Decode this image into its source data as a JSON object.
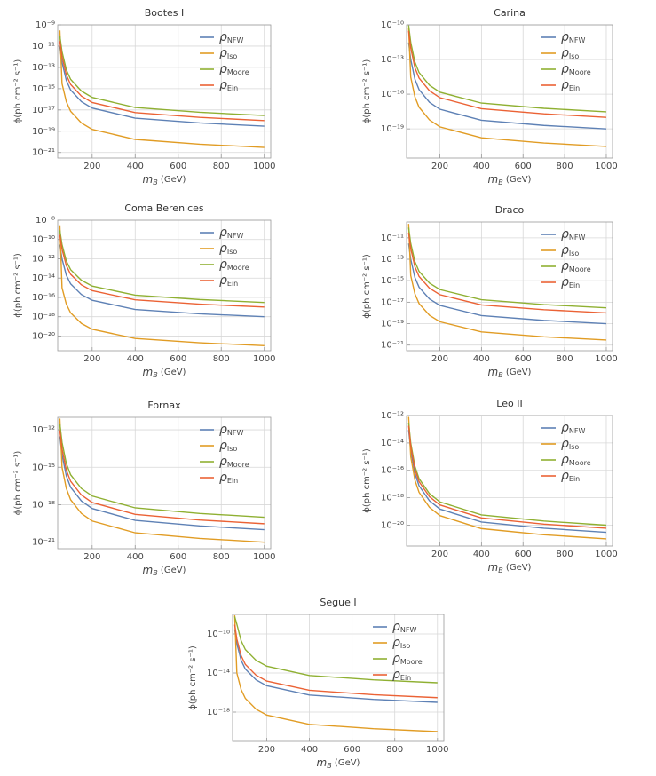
{
  "chart_data": [
    {
      "type": "line",
      "title": "Bootes I",
      "xlabel": "mB (GeV)",
      "ylabel": "ϕ(ph cm⁻² s⁻¹)",
      "yscale": "log",
      "grid": true,
      "legend": "upper right",
      "x": [
        50,
        60,
        80,
        100,
        150,
        200,
        400,
        700,
        1000
      ],
      "xlim": [
        40,
        1030
      ],
      "xticks": [
        200,
        400,
        600,
        800,
        1000
      ],
      "ylim": [
        3e-22,
        1e-09
      ],
      "yticks": [
        {
          "value": 1e-09,
          "label": "10⁻⁹"
        },
        {
          "value": 1e-11,
          "label": "10⁻¹¹"
        },
        {
          "value": 1e-13,
          "label": "10⁻¹³"
        },
        {
          "value": 1e-15,
          "label": "10⁻¹⁵"
        },
        {
          "value": 1e-17,
          "label": "10⁻¹⁷"
        },
        {
          "value": 1e-19,
          "label": "10⁻¹⁹"
        },
        {
          "value": 1e-21,
          "label": "10⁻²¹"
        }
      ],
      "series": [
        {
          "name": "ρNFW",
          "color": "#5e81b5",
          "values": [
            9e-12,
            3e-13,
            6e-15,
            7.5e-16,
            6e-17,
            1.5e-17,
            1.7e-18,
            6e-19,
            3e-19
          ]
        },
        {
          "name": "ρIso",
          "color": "#e19c24",
          "values": [
            3e-10,
            3e-15,
            6e-17,
            7.5e-18,
            6e-19,
            1.5e-19,
            1.7e-20,
            6e-21,
            3e-21
          ]
        },
        {
          "name": "ρMoore",
          "color": "#8fb032",
          "values": [
            9e-11,
            3e-12,
            6e-14,
            7.5e-15,
            6e-16,
            1.5e-16,
            1.7e-17,
            6e-18,
            3e-18
          ]
        },
        {
          "name": "ρEin",
          "color": "#eb6235",
          "values": [
            3e-11,
            1e-12,
            2e-14,
            2.5e-15,
            2e-16,
            5e-17,
            5.6e-18,
            2e-18,
            1e-18
          ]
        }
      ]
    },
    {
      "type": "line",
      "title": "Carina",
      "xlabel": "mB (GeV)",
      "ylabel": "ϕ(ph cm⁻² s⁻¹)",
      "yscale": "log",
      "grid": true,
      "legend": "upper right",
      "x": [
        50,
        60,
        80,
        100,
        150,
        200,
        400,
        700,
        1000
      ],
      "xlim": [
        40,
        1030
      ],
      "xticks": [
        200,
        400,
        600,
        800,
        1000
      ],
      "ylim": [
        3e-22,
        1e-10
      ],
      "yticks": [
        {
          "value": 1e-10,
          "label": "10⁻¹⁰"
        },
        {
          "value": 1e-13,
          "label": "10⁻¹³"
        },
        {
          "value": 1e-16,
          "label": "10⁻¹⁶"
        },
        {
          "value": 1e-19,
          "label": "10⁻¹⁹"
        }
      ],
      "series": [
        {
          "name": "ρNFW",
          "color": "#5e81b5",
          "values": [
            3e-12,
            1e-13,
            2e-15,
            2.5e-16,
            2e-17,
            5e-18,
            5.6e-19,
            2e-19,
            1e-19
          ]
        },
        {
          "name": "ρIso",
          "color": "#e19c24",
          "values": [
            5e-11,
            3e-15,
            6e-17,
            7.5e-18,
            6e-19,
            1.5e-19,
            1.7e-20,
            6e-21,
            3e-21
          ]
        },
        {
          "name": "ρMoore",
          "color": "#8fb032",
          "values": [
            9e-11,
            3e-12,
            6e-14,
            7.5e-15,
            6e-16,
            1.5e-16,
            1.7e-17,
            6e-18,
            3e-18
          ]
        },
        {
          "name": "ρEin",
          "color": "#eb6235",
          "values": [
            3e-11,
            1e-12,
            2e-14,
            2.5e-15,
            2e-16,
            5e-17,
            5.6e-18,
            2e-18,
            1e-18
          ]
        }
      ]
    },
    {
      "type": "line",
      "title": "Coma Berenices",
      "xlabel": "mB (GeV)",
      "ylabel": "ϕ(ph cm⁻² s⁻¹)",
      "yscale": "log",
      "grid": true,
      "legend": "upper right",
      "x": [
        50,
        60,
        80,
        100,
        150,
        200,
        400,
        700,
        1000
      ],
      "xlim": [
        40,
        1030
      ],
      "xticks": [
        200,
        400,
        600,
        800,
        1000
      ],
      "ylim": [
        3e-22,
        1e-08
      ],
      "yticks": [
        {
          "value": 1e-08,
          "label": "10⁻⁸"
        },
        {
          "value": 1e-10,
          "label": "10⁻¹⁰"
        },
        {
          "value": 1e-12,
          "label": "10⁻¹²"
        },
        {
          "value": 1e-14,
          "label": "10⁻¹⁴"
        },
        {
          "value": 1e-16,
          "label": "10⁻¹⁶"
        },
        {
          "value": 1e-18,
          "label": "10⁻¹⁸"
        },
        {
          "value": 1e-20,
          "label": "10⁻²⁰"
        }
      ],
      "series": [
        {
          "name": "ρNFW",
          "color": "#5e81b5",
          "values": [
            3e-11,
            1e-12,
            2e-14,
            2.5e-15,
            2e-16,
            5e-17,
            5.6e-18,
            2e-18,
            1e-18
          ]
        },
        {
          "name": "ρIso",
          "color": "#e19c24",
          "values": [
            3e-09,
            1e-15,
            2e-17,
            2.5e-18,
            2e-19,
            5e-20,
            5.6e-21,
            2e-21,
            1e-21
          ]
        },
        {
          "name": "ρMoore",
          "color": "#8fb032",
          "values": [
            9e-10,
            3e-11,
            6e-13,
            7.5e-14,
            6e-15,
            1.5e-15,
            1.7e-16,
            6e-17,
            3e-17
          ]
        },
        {
          "name": "ρEin",
          "color": "#eb6235",
          "values": [
            3e-10,
            1e-11,
            2e-13,
            2.5e-14,
            2e-15,
            5e-16,
            5.6e-17,
            2e-17,
            1e-17
          ]
        }
      ]
    },
    {
      "type": "line",
      "title": "Draco",
      "xlabel": "mB (GeV)",
      "ylabel": "ϕ(ph cm⁻² s⁻¹)",
      "yscale": "log",
      "grid": true,
      "legend": "upper right",
      "x": [
        50,
        60,
        80,
        100,
        150,
        200,
        400,
        700,
        1000
      ],
      "xlim": [
        40,
        1030
      ],
      "xticks": [
        200,
        400,
        600,
        800,
        1000
      ],
      "ylim": [
        3e-22,
        3e-10
      ],
      "yticks": [
        {
          "value": 1e-11,
          "label": "10⁻¹¹"
        },
        {
          "value": 1e-13,
          "label": "10⁻¹³"
        },
        {
          "value": 1e-15,
          "label": "10⁻¹⁵"
        },
        {
          "value": 1e-17,
          "label": "10⁻¹⁷"
        },
        {
          "value": 1e-19,
          "label": "10⁻¹⁹"
        },
        {
          "value": 1e-21,
          "label": "10⁻²¹"
        }
      ],
      "series": [
        {
          "name": "ρNFW",
          "color": "#5e81b5",
          "values": [
            3e-12,
            1e-13,
            2e-15,
            2.5e-16,
            2e-17,
            5e-18,
            5.6e-19,
            2e-19,
            1e-19
          ]
        },
        {
          "name": "ρIso",
          "color": "#e19c24",
          "values": [
            2e-10,
            3e-15,
            6e-17,
            7.5e-18,
            6e-19,
            1.5e-19,
            1.7e-20,
            6e-21,
            3e-21
          ]
        },
        {
          "name": "ρMoore",
          "color": "#8fb032",
          "values": [
            9e-11,
            3e-12,
            6e-14,
            7.5e-15,
            6e-16,
            1.5e-16,
            1.7e-17,
            6e-18,
            3e-18
          ]
        },
        {
          "name": "ρEin",
          "color": "#eb6235",
          "values": [
            3e-11,
            1e-12,
            2e-14,
            2.5e-15,
            2e-16,
            5e-17,
            5.6e-18,
            2e-18,
            1e-18
          ]
        }
      ]
    },
    {
      "type": "line",
      "title": "Fornax",
      "xlabel": "mB (GeV)",
      "ylabel": "ϕ(ph cm⁻² s⁻¹)",
      "yscale": "log",
      "grid": true,
      "legend": "upper right",
      "x": [
        50,
        60,
        80,
        100,
        150,
        200,
        400,
        700,
        1000
      ],
      "xlim": [
        40,
        1030
      ],
      "xticks": [
        200,
        400,
        600,
        800,
        1000
      ],
      "ylim": [
        3e-22,
        1e-11
      ],
      "yticks": [
        {
          "value": 1e-12,
          "label": "10⁻¹²"
        },
        {
          "value": 1e-15,
          "label": "10⁻¹⁵"
        },
        {
          "value": 1e-18,
          "label": "10⁻¹⁸"
        },
        {
          "value": 1e-21,
          "label": "10⁻²¹"
        }
      ],
      "series": [
        {
          "name": "ρNFW",
          "color": "#5e81b5",
          "values": [
            3e-13,
            1e-14,
            2e-16,
            2.5e-17,
            2e-18,
            5e-19,
            5.6e-20,
            2e-20,
            1e-20
          ]
        },
        {
          "name": "ρIso",
          "color": "#e19c24",
          "values": [
            8e-12,
            1e-15,
            2e-17,
            2.5e-18,
            2e-19,
            5e-20,
            5.6e-21,
            2e-21,
            1e-21
          ]
        },
        {
          "name": "ρMoore",
          "color": "#8fb032",
          "values": [
            3e-12,
            1e-13,
            2e-15,
            2.5e-16,
            2e-17,
            5e-18,
            5.6e-19,
            2e-19,
            1e-19
          ]
        },
        {
          "name": "ρEin",
          "color": "#eb6235",
          "values": [
            9e-13,
            3e-14,
            6e-16,
            7.5e-17,
            6e-18,
            1.5e-18,
            1.7e-19,
            6e-20,
            3e-20
          ]
        }
      ]
    },
    {
      "type": "line",
      "title": "Leo II",
      "xlabel": "mB (GeV)",
      "ylabel": "ϕ(ph cm⁻² s⁻¹)",
      "yscale": "log",
      "grid": true,
      "legend": "upper right",
      "x": [
        50,
        60,
        80,
        100,
        150,
        200,
        400,
        700,
        1000
      ],
      "xlim": [
        40,
        1030
      ],
      "xticks": [
        200,
        400,
        600,
        800,
        1000
      ],
      "ylim": [
        3e-22,
        1e-12
      ],
      "yticks": [
        {
          "value": 1e-12,
          "label": "10⁻¹²"
        },
        {
          "value": 1e-14,
          "label": "10⁻¹⁴"
        },
        {
          "value": 1e-16,
          "label": "10⁻¹⁶"
        },
        {
          "value": 1e-18,
          "label": "10⁻¹⁸"
        },
        {
          "value": 1e-20,
          "label": "10⁻²⁰"
        }
      ],
      "series": [
        {
          "name": "ρNFW",
          "color": "#5e81b5",
          "values": [
            9e-14,
            3e-15,
            6e-17,
            7.5e-18,
            6e-19,
            1.5e-19,
            1.7e-20,
            6e-21,
            3e-21
          ]
        },
        {
          "name": "ρIso",
          "color": "#e19c24",
          "values": [
            8e-13,
            1e-15,
            2e-17,
            2.5e-18,
            2e-19,
            5e-20,
            5.6e-21,
            2e-21,
            1e-21
          ]
        },
        {
          "name": "ρMoore",
          "color": "#8fb032",
          "values": [
            3e-13,
            1e-14,
            2e-16,
            2.5e-17,
            2e-18,
            5e-19,
            5.6e-20,
            2e-20,
            1e-20
          ]
        },
        {
          "name": "ρEin",
          "color": "#eb6235",
          "values": [
            1.8e-13,
            6e-15,
            1.2e-16,
            1.5e-17,
            1.2e-18,
            3e-19,
            3.4e-20,
            1.2e-20,
            6e-21
          ]
        }
      ]
    },
    {
      "type": "line",
      "title": "Segue I",
      "xlabel": "mB (GeV)",
      "ylabel": "ϕ(ph cm⁻² s⁻¹)",
      "yscale": "log",
      "grid": true,
      "legend": "upper right",
      "x": [
        50,
        60,
        80,
        100,
        150,
        200,
        400,
        700,
        1000
      ],
      "xlim": [
        40,
        1030
      ],
      "xticks": [
        200,
        400,
        600,
        800,
        1000
      ],
      "ylim": [
        1e-21,
        1e-08
      ],
      "yticks": [
        {
          "value": 1e-10,
          "label": "10⁻¹⁰"
        },
        {
          "value": 1e-14,
          "label": "10⁻¹⁴"
        },
        {
          "value": 1e-18,
          "label": "10⁻¹⁸"
        }
      ],
      "series": [
        {
          "name": "ρNFW",
          "color": "#5e81b5",
          "values": [
            3e-10,
            1e-11,
            2e-13,
            2.5e-14,
            2e-15,
            5e-16,
            5.6e-17,
            2e-17,
            1e-17
          ]
        },
        {
          "name": "ρIso",
          "color": "#e19c24",
          "values": [
            8e-09,
            1e-14,
            2e-16,
            2.5e-17,
            2e-18,
            5e-19,
            5.6e-20,
            2e-20,
            1e-20
          ]
        },
        {
          "name": "ρMoore",
          "color": "#8fb032",
          "values": [
            6e-09,
            1e-09,
            2e-11,
            2.5e-12,
            2e-13,
            5e-14,
            5.6e-15,
            2e-15,
            1e-15
          ]
        },
        {
          "name": "ρEin",
          "color": "#eb6235",
          "values": [
            9e-10,
            3e-11,
            6e-13,
            7.5e-14,
            6e-15,
            1.5e-15,
            1.7e-16,
            6e-17,
            3e-17
          ]
        }
      ]
    }
  ]
}
